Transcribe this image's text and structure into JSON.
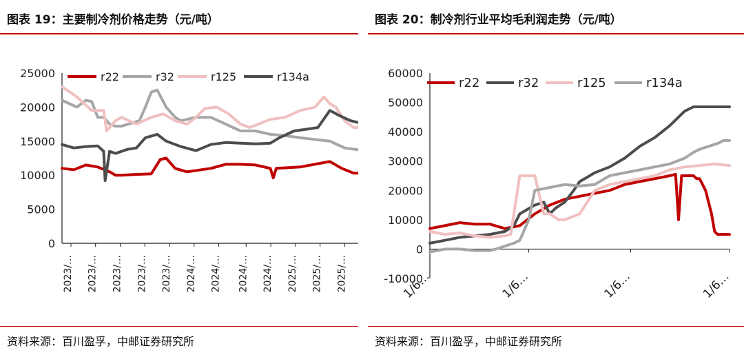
{
  "left": {
    "title": "图表 19：主要制冷剂价格走势（元/吨）",
    "source": "资料来源：百川盈孚，中邮证券研究所",
    "chart_data": {
      "type": "line",
      "title": "主要制冷剂价格走势（元/吨）",
      "ylim": [
        0,
        25000
      ],
      "yticks": [
        0,
        5000,
        10000,
        15000,
        20000,
        25000
      ],
      "xtick_labels": [
        "2023/…",
        "2023/…",
        "2023/…",
        "2023/…",
        "2023/…",
        "2024/…",
        "2024/…",
        "2024/…",
        "2024/…",
        "2025/…",
        "2025/…",
        "2025/…"
      ],
      "legend": [
        "r22",
        "r32",
        "r125",
        "r134a"
      ],
      "series": [
        {
          "name": "r22",
          "color": "#c00000",
          "x": [
            0,
            0.04,
            0.08,
            0.12,
            0.16,
            0.18,
            0.2,
            0.24,
            0.3,
            0.33,
            0.35,
            0.38,
            0.42,
            0.5,
            0.55,
            0.6,
            0.65,
            0.7,
            0.71,
            0.72,
            0.8,
            0.9,
            0.94,
            0.98,
            1.0
          ],
          "values": [
            11000,
            10800,
            11500,
            11200,
            10500,
            10000,
            10000,
            10100,
            10200,
            12300,
            12500,
            11000,
            10500,
            11000,
            11600,
            11600,
            11500,
            11000,
            9600,
            11000,
            11200,
            12000,
            11000,
            10300,
            10300
          ]
        },
        {
          "name": "r32",
          "color": "#a6a6a6",
          "x": [
            0,
            0.05,
            0.08,
            0.1,
            0.12,
            0.14,
            0.16,
            0.18,
            0.2,
            0.26,
            0.28,
            0.3,
            0.32,
            0.35,
            0.38,
            0.4,
            0.45,
            0.5,
            0.55,
            0.6,
            0.65,
            0.7,
            0.75,
            0.8,
            0.9,
            0.95,
            1.0
          ],
          "values": [
            21000,
            20000,
            21000,
            20800,
            18500,
            18500,
            17500,
            17200,
            17200,
            18000,
            20000,
            22200,
            22500,
            20000,
            18500,
            18000,
            18500,
            18500,
            17500,
            16500,
            16500,
            16000,
            15800,
            15500,
            15000,
            14000,
            13700
          ]
        },
        {
          "name": "r125",
          "color": "#f0c0c0",
          "x": [
            0,
            0.05,
            0.1,
            0.14,
            0.15,
            0.16,
            0.18,
            0.2,
            0.25,
            0.3,
            0.34,
            0.38,
            0.42,
            0.45,
            0.48,
            0.52,
            0.56,
            0.6,
            0.63,
            0.66,
            0.7,
            0.75,
            0.8,
            0.85,
            0.88,
            0.9,
            0.92,
            0.95,
            0.98,
            1.0
          ],
          "values": [
            23000,
            21500,
            19500,
            19500,
            16500,
            17000,
            18000,
            18500,
            17500,
            18500,
            19000,
            18000,
            17500,
            18500,
            19800,
            20000,
            19000,
            17500,
            17000,
            17500,
            18200,
            18500,
            19500,
            20000,
            21500,
            20500,
            20000,
            18000,
            17000,
            17000
          ]
        },
        {
          "name": "r134a",
          "color": "#4d4d4d",
          "x": [
            0,
            0.04,
            0.08,
            0.12,
            0.14,
            0.145,
            0.16,
            0.18,
            0.22,
            0.25,
            0.28,
            0.32,
            0.35,
            0.4,
            0.45,
            0.5,
            0.55,
            0.6,
            0.65,
            0.7,
            0.73,
            0.78,
            0.83,
            0.86,
            0.9,
            0.93,
            0.97,
            1.0
          ],
          "values": [
            14500,
            14000,
            14200,
            14300,
            13500,
            9200,
            13500,
            13200,
            13800,
            14000,
            15500,
            16000,
            15000,
            14200,
            13600,
            14500,
            14800,
            14700,
            14600,
            14700,
            15500,
            16500,
            16800,
            17000,
            19500,
            18800,
            18000,
            17700
          ]
        }
      ]
    }
  },
  "right": {
    "title": "图表 20：制冷剂行业平均毛利润走势（元/吨）",
    "source": "资料来源：百川盈孚，中邮证券研究所",
    "chart_data": {
      "type": "line",
      "title": "制冷剂行业平均毛利润走势（元/吨）",
      "ylim": [
        -10000,
        60000
      ],
      "yticks": [
        -10000,
        0,
        10000,
        20000,
        30000,
        40000,
        50000,
        60000
      ],
      "xtick_labels": [
        "1/6…",
        "1/6…",
        "1/6…",
        "1/6…"
      ],
      "legend": [
        "r22",
        "r32",
        "r125",
        "r134a"
      ],
      "series": [
        {
          "name": "r22",
          "color": "#c00000",
          "x": [
            0,
            0.05,
            0.1,
            0.15,
            0.2,
            0.25,
            0.3,
            0.35,
            0.4,
            0.45,
            0.5,
            0.55,
            0.6,
            0.65,
            0.7,
            0.75,
            0.8,
            0.82,
            0.83,
            0.84,
            0.86,
            0.88,
            0.89,
            0.9,
            0.92,
            0.94,
            0.95,
            0.96,
            0.98,
            1.0
          ],
          "values": [
            7000,
            8000,
            9000,
            8500,
            8500,
            7000,
            8000,
            12000,
            15000,
            17000,
            18000,
            19000,
            20000,
            22000,
            23000,
            24000,
            25000,
            25500,
            10000,
            25000,
            25000,
            25000,
            24000,
            24000,
            20000,
            12000,
            6000,
            5000,
            5000,
            5000
          ]
        },
        {
          "name": "r32",
          "color": "#4d4d4d",
          "x": [
            0,
            0.05,
            0.1,
            0.15,
            0.2,
            0.25,
            0.28,
            0.3,
            0.35,
            0.38,
            0.4,
            0.42,
            0.45,
            0.48,
            0.5,
            0.55,
            0.6,
            0.65,
            0.7,
            0.75,
            0.8,
            0.85,
            0.88,
            0.9,
            0.95,
            1.0
          ],
          "values": [
            2000,
            3000,
            4000,
            4500,
            5000,
            6000,
            8000,
            12000,
            15000,
            16000,
            12000,
            14000,
            16000,
            20000,
            23000,
            26000,
            28000,
            31000,
            35000,
            38000,
            42000,
            47000,
            48500,
            48500,
            48500,
            48500
          ]
        },
        {
          "name": "r125",
          "color": "#f0c0c0",
          "x": [
            0,
            0.05,
            0.1,
            0.15,
            0.2,
            0.25,
            0.27,
            0.3,
            0.35,
            0.38,
            0.4,
            0.43,
            0.45,
            0.5,
            0.55,
            0.6,
            0.65,
            0.7,
            0.75,
            0.8,
            0.85,
            0.9,
            0.95,
            1.0
          ],
          "values": [
            6000,
            5000,
            5500,
            4500,
            4000,
            4500,
            5000,
            25000,
            25000,
            12000,
            12000,
            10000,
            10000,
            12000,
            20000,
            22000,
            23000,
            24000,
            25000,
            27000,
            28000,
            28500,
            29000,
            28500
          ]
        },
        {
          "name": "r134a",
          "color": "#a6a6a6",
          "x": [
            0,
            0.05,
            0.1,
            0.15,
            0.2,
            0.22,
            0.25,
            0.28,
            0.3,
            0.33,
            0.35,
            0.4,
            0.45,
            0.5,
            0.55,
            0.6,
            0.65,
            0.7,
            0.75,
            0.8,
            0.85,
            0.88,
            0.9,
            0.93,
            0.96,
            0.98,
            1.0
          ],
          "values": [
            -1000,
            0,
            0,
            -500,
            -500,
            0,
            1000,
            2000,
            3000,
            10000,
            20000,
            21000,
            22000,
            21500,
            22000,
            25000,
            26000,
            27000,
            28000,
            29000,
            31000,
            33000,
            34000,
            35000,
            36000,
            37000,
            37000
          ]
        }
      ]
    }
  }
}
